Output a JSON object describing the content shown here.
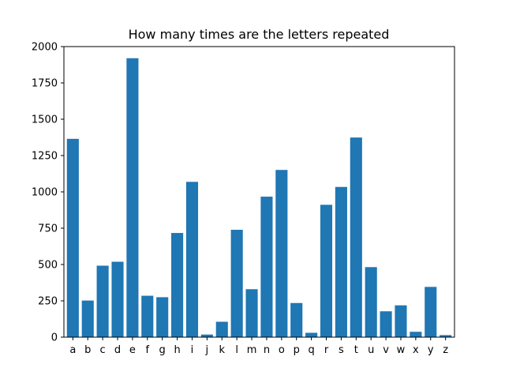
{
  "chart_data": {
    "type": "bar",
    "title": "How many times are the letters repeated",
    "xlabel": "",
    "ylabel": "",
    "categories": [
      "a",
      "b",
      "c",
      "d",
      "e",
      "f",
      "g",
      "h",
      "i",
      "j",
      "k",
      "l",
      "m",
      "n",
      "o",
      "p",
      "q",
      "r",
      "s",
      "t",
      "u",
      "v",
      "w",
      "x",
      "y",
      "z"
    ],
    "values": [
      1365,
      252,
      492,
      519,
      1920,
      285,
      275,
      717,
      1069,
      18,
      106,
      739,
      330,
      967,
      1151,
      235,
      30,
      911,
      1034,
      1374,
      482,
      178,
      219,
      37,
      346,
      14
    ],
    "ylim": [
      0,
      2000
    ],
    "yticks": [
      0,
      250,
      500,
      750,
      1000,
      1250,
      1500,
      1750,
      2000
    ],
    "grid": false,
    "bar_color": "#1f77b4"
  }
}
